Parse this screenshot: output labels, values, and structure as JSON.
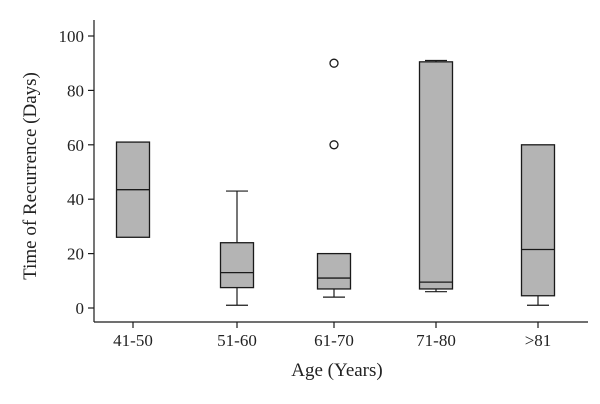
{
  "chart_data": {
    "type": "boxplot",
    "title": "",
    "xlabel": "Age (Years)",
    "ylabel": "Time of Recurrence (Days)",
    "ylim": [
      -5,
      105
    ],
    "yticks": [
      0,
      20,
      40,
      60,
      80,
      100
    ],
    "grid": false,
    "legend": "none",
    "box_color": "#b4b4b4",
    "categories": [
      "41-50",
      "51-60",
      "61-70",
      "71-80",
      ">81"
    ],
    "boxes": [
      {
        "q1": 26,
        "median": 43.5,
        "q3": 61,
        "whisker_low": null,
        "whisker_high": null,
        "outliers": []
      },
      {
        "q1": 7.5,
        "median": 13,
        "q3": 24,
        "whisker_low": 1,
        "whisker_high": 43,
        "outliers": []
      },
      {
        "q1": 7,
        "median": 11,
        "q3": 20,
        "whisker_low": 4,
        "whisker_high": null,
        "outliers": [
          60,
          90
        ]
      },
      {
        "q1": 7,
        "median": 9.5,
        "q3": 90.5,
        "whisker_low": 6,
        "whisker_high": 91,
        "outliers": []
      },
      {
        "q1": 4.5,
        "median": 21.5,
        "q3": 60,
        "whisker_low": 1,
        "whisker_high": null,
        "outliers": []
      }
    ]
  }
}
